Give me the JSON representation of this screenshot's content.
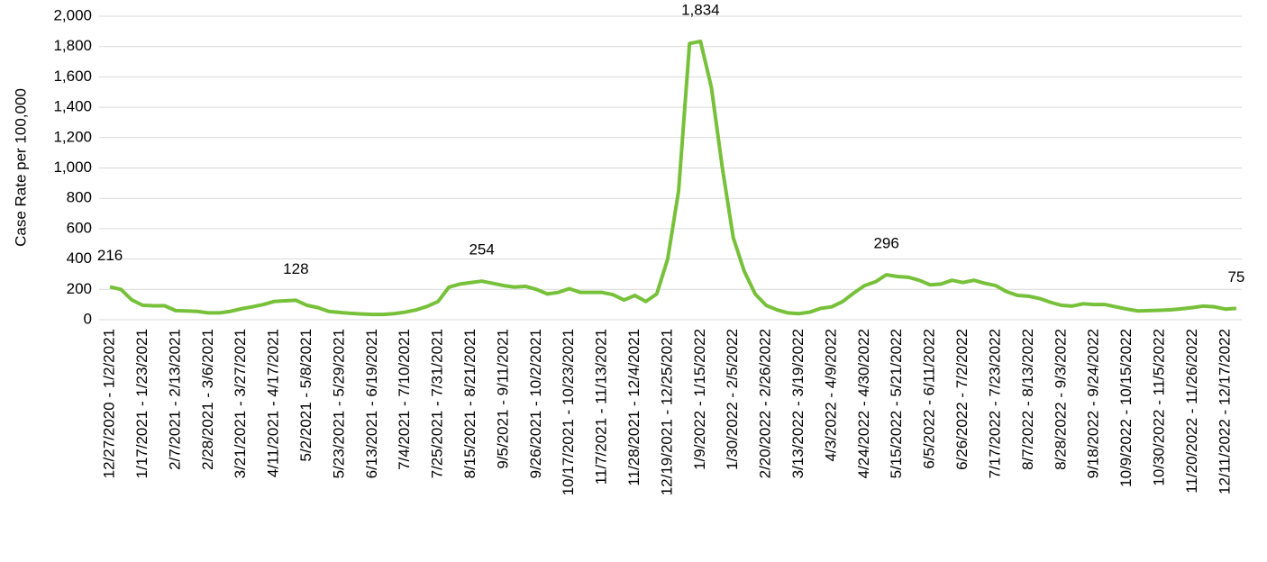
{
  "chart_data": {
    "type": "line",
    "y_label": "Case Rate per 100,000",
    "color": "#77c13a",
    "grid": true,
    "ylim": [
      0,
      2000
    ],
    "yticks": [
      0,
      200,
      400,
      600,
      800,
      {
        "value": 1000,
        "label": "1,000"
      },
      {
        "value": 1200,
        "label": "1,200"
      },
      {
        "value": 1400,
        "label": "1,400"
      },
      {
        "value": 1600,
        "label": "1,600"
      },
      {
        "value": 1800,
        "label": "1,800"
      },
      {
        "value": 2000,
        "label": "2,000"
      }
    ],
    "categories": [
      "12/27/2020 - 1/2/2021",
      null,
      null,
      "1/17/2021 - 1/23/2021",
      null,
      null,
      "2/7/2021 - 2/13/2021",
      null,
      null,
      "2/28/2021 - 3/6/2021",
      null,
      null,
      "3/21/2021 - 3/27/2021",
      null,
      null,
      "4/11/2021 - 4/17/2021",
      null,
      null,
      "5/2/2021 - 5/8/2021",
      null,
      null,
      "5/23/2021 - 5/29/2021",
      null,
      null,
      "6/13/2021 - 6/19/2021",
      null,
      null,
      "7/4/2021 - 7/10/2021",
      null,
      null,
      "7/25/2021 - 7/31/2021",
      null,
      null,
      "8/15/2021 - 8/21/2021",
      null,
      null,
      "9/5/2021 - 9/11/2021",
      null,
      null,
      "9/26/2021 - 10/2/2021",
      null,
      null,
      "10/17/2021 - 10/23/2021",
      null,
      null,
      "11/7/2021 - 11/13/2021",
      null,
      null,
      "11/28/2021 - 12/4/2021",
      null,
      null,
      "12/19/2021 - 12/25/2021",
      null,
      null,
      "1/9/2022 - 1/15/2022",
      null,
      null,
      "1/30/2022 - 2/5/2022",
      null,
      null,
      "2/20/2022 - 2/26/2022",
      null,
      null,
      "3/13/2022 - 3/19/2022",
      null,
      null,
      "4/3/2022 - 4/9/2022",
      null,
      null,
      "4/24/2022 - 4/30/2022",
      null,
      null,
      "5/15/2022 - 5/21/2022",
      null,
      null,
      "6/5/2022 - 6/11/2022",
      null,
      null,
      "6/26/2022 - 7/2/2022",
      null,
      null,
      "7/17/2022 - 7/23/2022",
      null,
      null,
      "8/7/2022 - 8/13/2022",
      null,
      null,
      "8/28/2022 - 9/3/2022",
      null,
      null,
      "9/18/2022 - 9/24/2022",
      null,
      null,
      "10/9/2022 - 10/15/2022",
      null,
      null,
      "10/30/2022 - 11/5/2022",
      null,
      null,
      "11/20/2022 - 11/26/2022",
      null,
      null,
      "12/11/2022 - 12/17/2022",
      null
    ],
    "values": [
      216,
      200,
      130,
      95,
      92,
      92,
      60,
      58,
      55,
      45,
      45,
      55,
      72,
      85,
      100,
      120,
      125,
      128,
      95,
      80,
      55,
      48,
      42,
      38,
      35,
      35,
      40,
      50,
      65,
      88,
      120,
      215,
      235,
      245,
      254,
      240,
      225,
      215,
      220,
      200,
      170,
      180,
      205,
      180,
      180,
      180,
      165,
      130,
      160,
      120,
      170,
      400,
      850,
      1820,
      1834,
      1530,
      1000,
      540,
      320,
      170,
      95,
      65,
      45,
      40,
      50,
      75,
      85,
      120,
      175,
      225,
      250,
      296,
      285,
      280,
      260,
      230,
      235,
      260,
      245,
      260,
      240,
      225,
      185,
      160,
      155,
      140,
      115,
      95,
      90,
      105,
      100,
      100,
      85,
      70,
      58,
      60,
      62,
      65,
      72,
      80,
      90,
      85,
      70,
      75
    ],
    "value_labels": [
      "216",
      null,
      null,
      null,
      null,
      null,
      null,
      null,
      null,
      null,
      null,
      null,
      null,
      null,
      null,
      null,
      null,
      "128",
      null,
      null,
      null,
      null,
      null,
      null,
      null,
      null,
      null,
      null,
      null,
      null,
      null,
      null,
      null,
      null,
      "254",
      null,
      null,
      null,
      null,
      null,
      null,
      null,
      null,
      null,
      null,
      null,
      null,
      null,
      null,
      null,
      null,
      null,
      null,
      null,
      "1,834",
      null,
      null,
      null,
      null,
      null,
      null,
      null,
      null,
      null,
      null,
      null,
      null,
      null,
      null,
      null,
      null,
      "296",
      null,
      null,
      null,
      null,
      null,
      null,
      null,
      null,
      null,
      null,
      null,
      null,
      null,
      null,
      null,
      null,
      null,
      null,
      null,
      null,
      null,
      null,
      null,
      null,
      null,
      null,
      null,
      null,
      null,
      null,
      null,
      "75"
    ]
  }
}
